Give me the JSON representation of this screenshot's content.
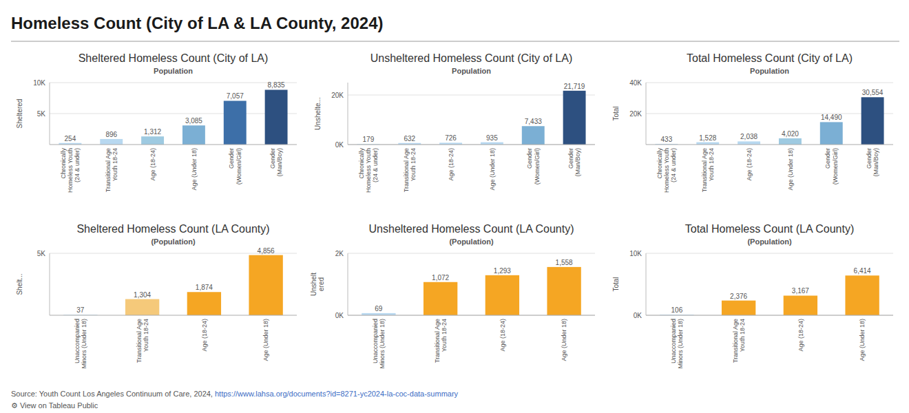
{
  "title": "Homeless Count (City of LA & LA County, 2024)",
  "annotations": [
    "Source: Youth Count Los Angeles Continuum of Care, 2024,",
    "https://www.lahsa.org/documents?id=8271-yc2024-la-coc-data-summary",
    "⚙ View on Tableau Public"
  ],
  "chart_data": [
    {
      "type": "bar",
      "title": "Sheltered Homeless Count (City of LA)",
      "xlabel": "Population",
      "ylabel": "Sheltered",
      "categories": [
        "Chronically\nHomeless Youth\n(24 & under)",
        "Transitional Age\nYouth 18-24",
        "Age (18-24)",
        "Age (Under 18)",
        "Gender\n(Women/Girl)",
        "Gender\n(Man/Boy)"
      ],
      "values": [
        254,
        896,
        1312,
        3085,
        7057,
        8835
      ],
      "value_labels": [
        "254",
        "896",
        "1,312",
        "3,085",
        "7,057",
        "8,835"
      ],
      "colors": [
        "#b8d8f0",
        "#b8d8f0",
        "#9ecae1",
        "#7bafd4",
        "#3d6fa8",
        "#2d5080"
      ],
      "ylim": [
        0,
        10000
      ],
      "yticks": [
        {
          "value": 5000,
          "label": "5K"
        },
        {
          "value": 10000,
          "label": "10K"
        }
      ],
      "grid": true,
      "data_labels": true
    },
    {
      "type": "bar",
      "title": "Unsheltered Homeless Count (City of LA)",
      "xlabel": "Population",
      "ylabel": "Unshelte...",
      "categories": [
        "Chronically\nHomeless Youth\n(24 & under)",
        "Transitional Age\nYouth 18-24",
        "Age (18-24)",
        "Age (Under 18)",
        "Gender\n(Women/Girl)",
        "Gender\n(Man/Boy)"
      ],
      "values": [
        179,
        632,
        726,
        935,
        7433,
        21719
      ],
      "value_labels": [
        "179",
        "632",
        "726",
        "935",
        "7,433",
        "21,719"
      ],
      "colors": [
        "#b8d8f0",
        "#b8d8f0",
        "#b8d8f0",
        "#b8d8f0",
        "#7bafd4",
        "#2d5080"
      ],
      "ylim": [
        0,
        25000
      ],
      "yticks": [
        {
          "value": 0,
          "label": "0K"
        },
        {
          "value": 20000,
          "label": "20K"
        }
      ],
      "grid": true,
      "data_labels": true
    },
    {
      "type": "bar",
      "title": "Total Homeless Count (City of LA)",
      "xlabel": "Population",
      "ylabel": "Total",
      "categories": [
        "Chronically\nHomeless Youth\n(24 & under)",
        "Transitional Age\nYouth 18-24",
        "Age (18-24)",
        "Age (Under 18)",
        "Gender\n(Women/Girl)",
        "Gender\n(Man/Boy)"
      ],
      "values": [
        433,
        1528,
        2038,
        4020,
        14490,
        30554
      ],
      "value_labels": [
        "433",
        "1,528",
        "2,038",
        "4,020",
        "14,490",
        "30,554"
      ],
      "colors": [
        "#b8d8f0",
        "#b8d8f0",
        "#b8d8f0",
        "#9ecae1",
        "#7bafd4",
        "#2d5080"
      ],
      "ylim": [
        0,
        40000
      ],
      "yticks": [
        {
          "value": 20000,
          "label": "20K"
        },
        {
          "value": 40000,
          "label": "40K"
        }
      ],
      "grid": true,
      "data_labels": true
    },
    {
      "type": "bar",
      "title": "Sheltered Homeless Count (LA County)",
      "xlabel": "(Population)",
      "ylabel": "Shelt...",
      "categories": [
        "Unaccompanied\nMinors (Under 18)",
        "Transitional Age\nYouth 18-24",
        "Age (18-24)",
        "Age (Under 18)"
      ],
      "values": [
        37,
        1304,
        1874,
        4856
      ],
      "value_labels": [
        "37",
        "1,304",
        "1,874",
        "4,856"
      ],
      "colors": [
        "#b8d8f0",
        "#f5c97a",
        "#f5a623",
        "#f5a623"
      ],
      "ylim": [
        0,
        5000
      ],
      "yticks": [
        {
          "value": 5000,
          "label": "5K"
        }
      ],
      "grid": true,
      "data_labels": true
    },
    {
      "type": "bar",
      "title": "Unsheltered Homeless Count (LA County)",
      "xlabel": "(Population)",
      "ylabel": "Unshelt\nered",
      "categories": [
        "Unaccompanied\nMinors (Under 18)",
        "Transitional Age\nYouth 18-24",
        "Age (18-24)",
        "Age (Under 18)"
      ],
      "values": [
        69,
        1072,
        1293,
        1558
      ],
      "value_labels": [
        "69",
        "1,072",
        "1,293",
        "1,558"
      ],
      "colors": [
        "#b8d8f0",
        "#f5a623",
        "#f5a623",
        "#f5a623"
      ],
      "ylim": [
        0,
        2000
      ],
      "yticks": [
        {
          "value": 0,
          "label": "0K"
        },
        {
          "value": 2000,
          "label": "2K"
        }
      ],
      "grid": true,
      "data_labels": true
    },
    {
      "type": "bar",
      "title": "Total Homeless Count (LA County)",
      "xlabel": "(Population)",
      "ylabel": "Total",
      "categories": [
        "Unaccompanied\nMinors (Under 18)",
        "Transitional Age\nYouth 18-24",
        "Age (18-24)",
        "Age (Under 18)"
      ],
      "values": [
        106,
        2376,
        3167,
        6414
      ],
      "value_labels": [
        "106",
        "2,376",
        "3,167",
        "6,414"
      ],
      "colors": [
        "#b8d8f0",
        "#f5a623",
        "#f5a623",
        "#f5a623"
      ],
      "ylim": [
        0,
        10000
      ],
      "yticks": [
        {
          "value": 0,
          "label": "0K"
        },
        {
          "value": 10000,
          "label": "10K"
        }
      ],
      "grid": true,
      "data_labels": true
    }
  ]
}
